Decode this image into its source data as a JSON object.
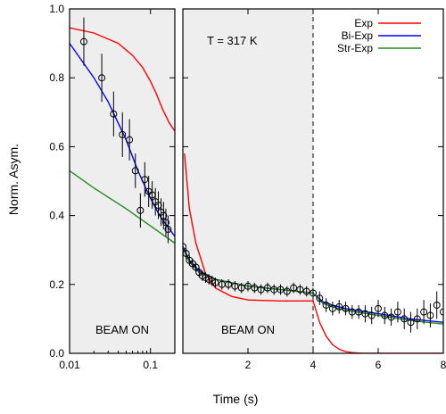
{
  "chart_data": {
    "type": "line",
    "xlabel": "Time (s)",
    "ylabel": "Norm. Asym.",
    "ylim": [
      0,
      1.0
    ],
    "y_ticks": [
      "0.0",
      "0.2",
      "0.4",
      "0.6",
      "0.8",
      "1.0"
    ],
    "grid": false,
    "legend_position": "top-right",
    "colors": {
      "Exp": "#ff0000",
      "Bi-Exp": "#0000ff",
      "Str-Exp": "#228B22",
      "data": "#000000"
    },
    "annotation": "T = 317 K",
    "dashed_line_x": 4,
    "panels": [
      {
        "name": "left",
        "xscale": "log",
        "xlim": [
          0.01,
          0.2
        ],
        "x_ticks": [
          "0.01",
          "0.1"
        ],
        "x_tick_values": [
          0.01,
          0.1
        ],
        "region_label": "BEAM ON",
        "shaded": true
      },
      {
        "name": "right",
        "xscale": "linear",
        "xlim": [
          0,
          8
        ],
        "x_ticks": [
          "2",
          "4",
          "6",
          "8"
        ],
        "x_tick_values": [
          2,
          4,
          6,
          8
        ],
        "region_label": "BEAM ON",
        "shaded_range": [
          0,
          4
        ]
      }
    ],
    "legend": [
      "Exp",
      "Bi-Exp",
      "Str-Exp"
    ],
    "series": [
      {
        "name": "Exp",
        "left": {
          "x": [
            0.01,
            0.02,
            0.04,
            0.06,
            0.08,
            0.1,
            0.12,
            0.14,
            0.17,
            0.2
          ],
          "y": [
            0.945,
            0.93,
            0.9,
            0.865,
            0.83,
            0.79,
            0.75,
            0.71,
            0.67,
            0.645
          ]
        },
        "right": {
          "x": [
            0.05,
            0.2,
            0.4,
            0.7,
            1.0,
            1.5,
            2.0,
            3.0,
            4.0,
            4.2,
            4.4,
            4.6,
            4.8,
            5.0,
            5.2,
            5.5,
            6.0,
            7.0,
            8.0
          ],
          "y": [
            0.58,
            0.42,
            0.32,
            0.23,
            0.19,
            0.165,
            0.155,
            0.152,
            0.152,
            0.09,
            0.05,
            0.025,
            0.012,
            0.005,
            0.002,
            0.0,
            0.0,
            0.0,
            0.0
          ]
        }
      },
      {
        "name": "Bi-Exp",
        "left": {
          "x": [
            0.01,
            0.02,
            0.03,
            0.05,
            0.07,
            0.1,
            0.13,
            0.16,
            0.2
          ],
          "y": [
            0.9,
            0.8,
            0.73,
            0.62,
            0.53,
            0.45,
            0.4,
            0.37,
            0.34
          ]
        },
        "right": {
          "x": [
            0.0,
            0.2,
            0.5,
            1.0,
            1.5,
            2.0,
            3.0,
            4.0,
            4.3,
            4.6,
            5.0,
            6.0,
            7.0,
            8.0
          ],
          "y": [
            0.31,
            0.27,
            0.24,
            0.215,
            0.205,
            0.195,
            0.185,
            0.175,
            0.15,
            0.14,
            0.13,
            0.115,
            0.1,
            0.09
          ]
        }
      },
      {
        "name": "Str-Exp",
        "left": {
          "x": [
            0.01,
            0.02,
            0.05,
            0.1,
            0.2
          ],
          "y": [
            0.53,
            0.48,
            0.42,
            0.37,
            0.32
          ]
        },
        "right": {
          "x": [
            0.0,
            0.2,
            0.5,
            1.0,
            1.5,
            2.0,
            3.0,
            4.0,
            4.3,
            4.6,
            5.0,
            6.0,
            7.0,
            8.0
          ],
          "y": [
            0.305,
            0.265,
            0.235,
            0.215,
            0.205,
            0.195,
            0.185,
            0.175,
            0.145,
            0.135,
            0.125,
            0.11,
            0.095,
            0.085
          ]
        }
      },
      {
        "name": "data",
        "left": {
          "x": [
            0.015,
            0.025,
            0.035,
            0.045,
            0.055,
            0.065,
            0.075,
            0.085,
            0.095,
            0.105,
            0.115,
            0.125,
            0.135,
            0.145,
            0.155,
            0.165
          ],
          "y": [
            0.905,
            0.8,
            0.695,
            0.635,
            0.62,
            0.53,
            0.415,
            0.505,
            0.47,
            0.46,
            0.44,
            0.43,
            0.41,
            0.4,
            0.38,
            0.36
          ],
          "err": [
            0.07,
            0.07,
            0.065,
            0.065,
            0.06,
            0.05,
            0.05,
            0.05,
            0.045,
            0.04,
            0.04,
            0.04,
            0.04,
            0.04,
            0.04,
            0.04
          ]
        },
        "right": {
          "x": [
            0.0,
            0.1,
            0.2,
            0.3,
            0.4,
            0.5,
            0.6,
            0.7,
            0.8,
            0.9,
            1.0,
            1.2,
            1.4,
            1.6,
            1.8,
            2.0,
            2.2,
            2.4,
            2.6,
            2.8,
            3.0,
            3.2,
            3.4,
            3.6,
            3.8,
            4.0,
            4.2,
            4.4,
            4.6,
            4.8,
            5.0,
            5.2,
            5.4,
            5.6,
            5.8,
            6.0,
            6.2,
            6.4,
            6.6,
            6.8,
            7.0,
            7.2,
            7.4,
            7.6,
            7.8,
            8.0
          ],
          "y": [
            0.31,
            0.29,
            0.27,
            0.26,
            0.25,
            0.235,
            0.225,
            0.22,
            0.215,
            0.21,
            0.205,
            0.2,
            0.2,
            0.195,
            0.19,
            0.195,
            0.19,
            0.185,
            0.19,
            0.185,
            0.185,
            0.18,
            0.19,
            0.185,
            0.18,
            0.175,
            0.16,
            0.14,
            0.13,
            0.135,
            0.13,
            0.12,
            0.12,
            0.115,
            0.11,
            0.13,
            0.11,
            0.105,
            0.12,
            0.1,
            0.09,
            0.1,
            0.12,
            0.11,
            0.14,
            0.12
          ],
          "err": [
            0.015,
            0.015,
            0.015,
            0.015,
            0.015,
            0.015,
            0.015,
            0.015,
            0.015,
            0.015,
            0.015,
            0.015,
            0.015,
            0.015,
            0.015,
            0.015,
            0.015,
            0.015,
            0.015,
            0.015,
            0.015,
            0.015,
            0.015,
            0.015,
            0.015,
            0.015,
            0.02,
            0.02,
            0.02,
            0.02,
            0.02,
            0.02,
            0.02,
            0.025,
            0.025,
            0.025,
            0.025,
            0.025,
            0.03,
            0.03,
            0.03,
            0.03,
            0.035,
            0.035,
            0.04,
            0.04
          ]
        }
      }
    ]
  }
}
